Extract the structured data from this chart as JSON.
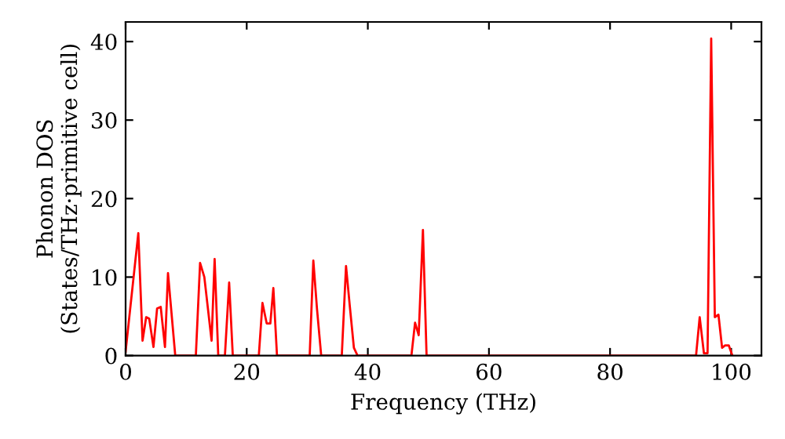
{
  "chart_data": {
    "type": "line",
    "xlabel": "Frequency (THz)",
    "ylabel": "Phonon DOS\n(States/THz·primitive cell)",
    "xlim": [
      0,
      105
    ],
    "ylim": [
      0,
      42.5
    ],
    "xticks": [
      0,
      20,
      40,
      60,
      80,
      100
    ],
    "yticks": [
      0,
      10,
      20,
      30,
      40
    ],
    "grid": false,
    "legend": false,
    "marker": "none",
    "line_style": "solid",
    "series": [
      {
        "color": "#ff0000",
        "x": [
          0,
          2.1,
          2.8,
          3.4,
          3.9,
          4.6,
          5.2,
          5.8,
          6.5,
          7.0,
          8.2,
          11.6,
          12.3,
          13.0,
          14.2,
          14.7,
          15.3,
          16.4,
          17.1,
          17.7,
          22.0,
          22.6,
          23.3,
          23.9,
          24.4,
          25.0,
          30.4,
          31.0,
          31.6,
          32.3,
          35.7,
          36.4,
          37.0,
          37.7,
          38.3,
          47.2,
          47.8,
          48.4,
          49.1,
          49.7,
          94.2,
          94.8,
          95.5,
          96.1,
          96.7,
          97.3,
          97.9,
          98.5,
          99.0,
          99.6,
          100.2
        ],
        "values": [
          0.5,
          15.6,
          1.9,
          4.9,
          4.7,
          1.1,
          6,
          6.2,
          1.1,
          10.5,
          0,
          0,
          11.8,
          10,
          1.9,
          12.3,
          0,
          0,
          9.3,
          0,
          0,
          6.7,
          4.1,
          4.1,
          8.6,
          0,
          0,
          12.1,
          6,
          0,
          0,
          11.4,
          6.5,
          1,
          0,
          0,
          4.2,
          2.6,
          16.0,
          0,
          0,
          4.9,
          0.3,
          0.3,
          40.4,
          4.9,
          5.2,
          1,
          1.3,
          1.3,
          0
        ]
      }
    ]
  }
}
